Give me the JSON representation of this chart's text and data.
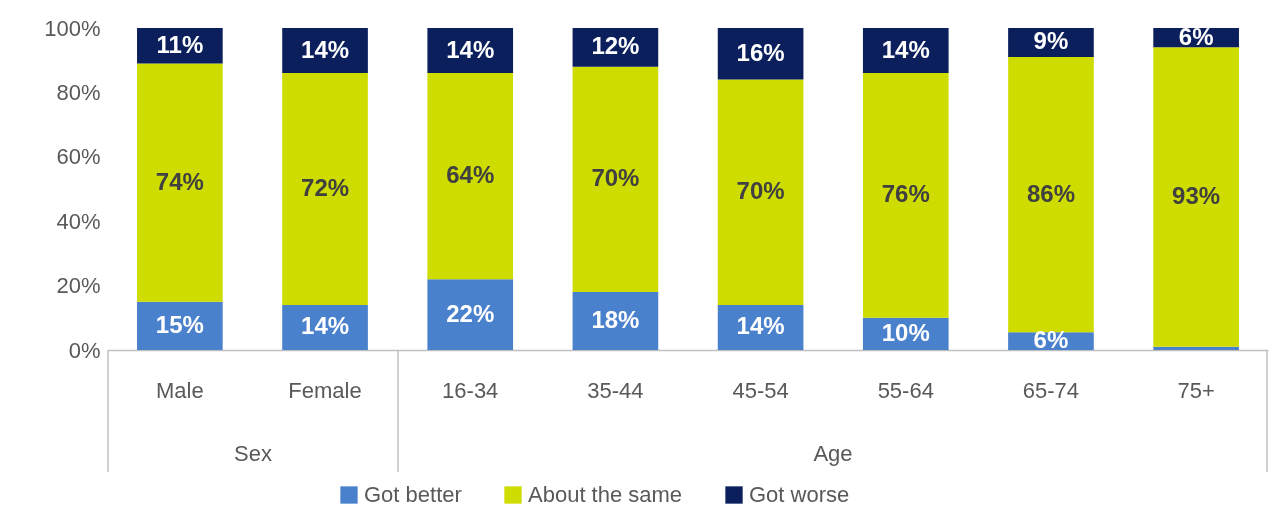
{
  "chart_data": {
    "type": "bar",
    "stacked": true,
    "categories": [
      "Male",
      "Female",
      "16-34",
      "35-44",
      "45-54",
      "55-64",
      "65-74",
      "75+"
    ],
    "series": [
      {
        "name": "Got better",
        "color": "#4a81cd",
        "values": [
          15,
          14,
          22,
          18,
          14,
          10,
          5.5,
          1
        ],
        "value_labels": [
          "15%",
          "14%",
          "22%",
          "18%",
          "14%",
          "10%",
          "6%",
          null
        ]
      },
      {
        "name": "About the same",
        "color": "#cfdc00",
        "values": [
          74,
          72,
          64,
          70,
          70,
          76,
          85.5,
          93
        ],
        "value_labels": [
          "74%",
          "72%",
          "64%",
          "70%",
          "70%",
          "76%",
          "86%",
          "93%"
        ]
      },
      {
        "name": "Got worse",
        "color": "#0a1f5c",
        "values": [
          11,
          14,
          14,
          12,
          16,
          14,
          9,
          6
        ],
        "value_labels": [
          "11%",
          "14%",
          "14%",
          "12%",
          "16%",
          "14%",
          "9%",
          "6%"
        ]
      }
    ],
    "ylim": [
      0,
      100
    ],
    "yticks": [
      {
        "value": 0,
        "label": "0%"
      },
      {
        "value": 20,
        "label": "20%"
      },
      {
        "value": 40,
        "label": "40%"
      },
      {
        "value": 60,
        "label": "60%"
      },
      {
        "value": 80,
        "label": "80%"
      },
      {
        "value": 100,
        "label": "100%"
      }
    ],
    "grid": false,
    "legend": "bottom",
    "annotations": [
      "Sex",
      "Age"
    ]
  }
}
